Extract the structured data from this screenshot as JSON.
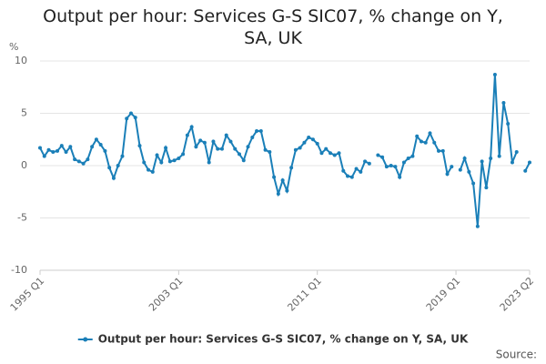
{
  "chart_data": {
    "type": "line",
    "title": "Output per hour: Services G-S SIC07, % change on Y, SA, UK",
    "y_unit": "%",
    "source": "Source:",
    "categories": [
      "1995 Q1",
      null,
      null,
      null,
      null,
      null,
      null,
      null,
      null,
      null,
      null,
      null,
      null,
      null,
      null,
      null,
      null,
      null,
      null,
      null,
      null,
      null,
      null,
      null,
      null,
      null,
      null,
      null,
      null,
      null,
      null,
      null,
      "2003 Q1",
      null,
      null,
      null,
      null,
      null,
      null,
      null,
      null,
      null,
      null,
      null,
      null,
      null,
      null,
      null,
      null,
      null,
      null,
      null,
      null,
      null,
      null,
      null,
      null,
      null,
      null,
      null,
      null,
      null,
      null,
      null,
      "2011 Q1",
      null,
      null,
      null,
      null,
      null,
      null,
      null,
      null,
      null,
      null,
      null,
      null,
      null,
      null,
      null,
      null,
      null,
      null,
      null,
      null,
      null,
      null,
      null,
      null,
      null,
      null,
      null,
      null,
      null,
      null,
      null,
      "2019 Q1",
      null,
      null,
      null,
      null,
      null,
      null,
      null,
      null,
      null,
      null,
      null,
      null,
      null,
      null,
      null,
      null,
      "2023 Q2"
    ],
    "series": [
      {
        "name": "Output per hour: Services G-S SIC07, % change on Y, SA, UK",
        "color": "#1a7fb8",
        "values": [
          1.7,
          0.9,
          1.5,
          1.3,
          1.4,
          1.9,
          1.3,
          1.8,
          0.6,
          0.4,
          0.2,
          0.6,
          1.8,
          2.5,
          2.0,
          1.4,
          -0.2,
          -1.2,
          0.0,
          0.9,
          4.5,
          5.0,
          4.6,
          1.9,
          0.3,
          -0.4,
          -0.6,
          1.0,
          0.3,
          1.7,
          0.4,
          0.5,
          0.7,
          1.1,
          2.9,
          3.7,
          1.8,
          2.4,
          2.2,
          0.3,
          2.3,
          1.6,
          1.6,
          2.9,
          2.3,
          1.6,
          1.1,
          0.5,
          1.8,
          2.7,
          3.3,
          3.3,
          1.5,
          1.3,
          -1.1,
          -2.7,
          -1.4,
          -2.4,
          -0.2,
          1.5,
          1.7,
          2.2,
          2.7,
          2.5,
          2.1,
          1.2,
          1.6,
          1.2,
          1.0,
          1.2,
          -0.5,
          -1.0,
          -1.1,
          -0.3,
          -0.6,
          0.4,
          0.2,
          null,
          1.0,
          0.8,
          -0.1,
          0.0,
          -0.1,
          -1.1,
          0.3,
          0.7,
          0.9,
          2.8,
          2.3,
          2.2,
          3.1,
          2.2,
          1.4,
          1.4,
          -0.8,
          -0.1,
          null,
          -0.4,
          0.7,
          -0.6,
          -1.7,
          -5.8,
          0.4,
          -2.1,
          0.7,
          8.7,
          0.9,
          6.0,
          4.0,
          0.3,
          1.3,
          null,
          -0.5,
          0.3
        ]
      }
    ],
    "ylim": [
      -10,
      10
    ],
    "yticks": [
      10,
      5,
      0,
      -5,
      -10
    ],
    "grid": true,
    "legend": "bottom"
  }
}
